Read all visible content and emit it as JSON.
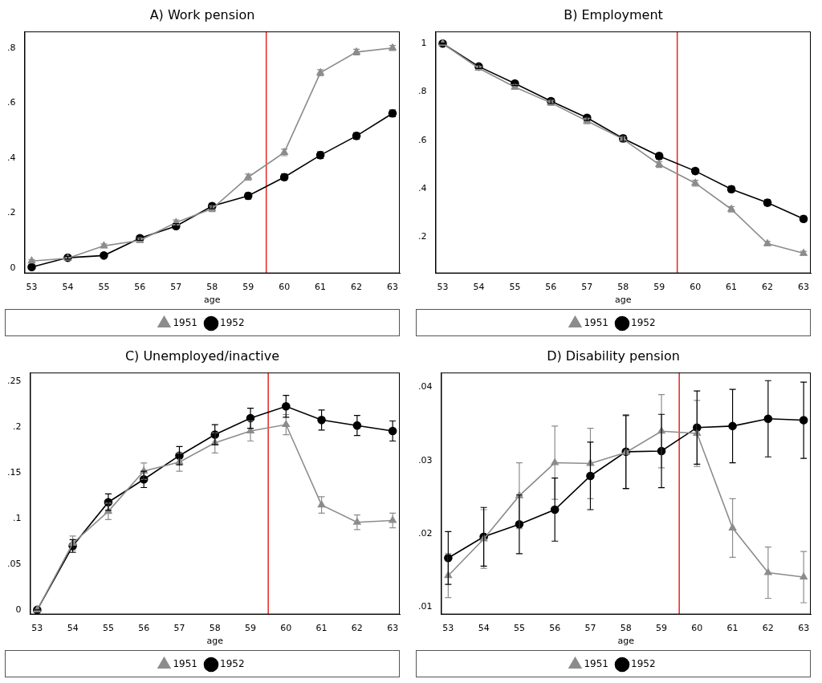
{
  "chart_data": [
    {
      "type": "line",
      "title": "A) Work pension",
      "x_label": "age",
      "x": [
        53,
        54,
        55,
        56,
        57,
        58,
        59,
        60,
        61,
        62,
        63
      ],
      "xlim": [
        52.8,
        63.2
      ],
      "xticks": [
        53,
        54,
        55,
        56,
        57,
        58,
        59,
        60,
        61,
        62,
        63
      ],
      "ylim": [
        -0.02,
        0.86
      ],
      "yticks": [
        0,
        {
          "value": 0.2,
          "label": ".2"
        },
        {
          "value": 0.4,
          "label": ".4"
        },
        {
          "value": 0.6,
          "label": ".6"
        },
        {
          "value": 0.8,
          "label": ".8"
        }
      ],
      "grid": false,
      "legend": "bottom",
      "reference_lines": [
        {
          "x": 59.5,
          "color": "#e8251f"
        }
      ],
      "series": [
        {
          "name": "1951",
          "color": "#8c8c8c",
          "marker": "triangle",
          "values": [
            0.025,
            0.035,
            0.08,
            0.1,
            0.165,
            0.215,
            0.33,
            0.42,
            0.71,
            0.785,
            0.8
          ],
          "errors": [
            0.005,
            0.005,
            0.007,
            0.008,
            0.009,
            0.01,
            0.011,
            0.012,
            0.011,
            0.01,
            0.009
          ]
        },
        {
          "name": "1952",
          "color": "#000000",
          "marker": "circle",
          "values": [
            0.003,
            0.037,
            0.045,
            0.108,
            0.152,
            0.225,
            0.262,
            0.33,
            0.41,
            0.48,
            0.562
          ],
          "errors": [
            0.003,
            0.005,
            0.006,
            0.008,
            0.009,
            0.01,
            0.011,
            0.011,
            0.012,
            0.012,
            0.012
          ]
        }
      ]
    },
    {
      "type": "line",
      "title": "B) Employment",
      "x_label": "age",
      "x": [
        53,
        54,
        55,
        56,
        57,
        58,
        59,
        60,
        61,
        62,
        63
      ],
      "xlim": [
        52.8,
        63.2
      ],
      "xticks": [
        53,
        54,
        55,
        56,
        57,
        58,
        59,
        60,
        61,
        62,
        63
      ],
      "ylim": [
        0.05,
        1.05
      ],
      "yticks": [
        {
          "value": 0.2,
          "label": ".2"
        },
        {
          "value": 0.4,
          "label": ".4"
        },
        {
          "value": 0.6,
          "label": ".6"
        },
        {
          "value": 0.8,
          "label": ".8"
        },
        1
      ],
      "grid": false,
      "legend": "bottom",
      "reference_lines": [
        {
          "x": 59.5,
          "color": "#e8251f"
        }
      ],
      "series": [
        {
          "name": "1951",
          "color": "#8c8c8c",
          "marker": "triangle",
          "values": [
            1,
            0.898,
            0.82,
            0.755,
            0.68,
            0.605,
            0.5,
            0.423,
            0.315,
            0.173,
            0.133
          ],
          "errors": [
            0.002,
            0.008,
            0.009,
            0.01,
            0.011,
            0.011,
            0.012,
            0.012,
            0.011,
            0.009,
            0.008
          ]
        },
        {
          "name": "1952",
          "color": "#000000",
          "marker": "circle",
          "values": [
            1,
            0.905,
            0.835,
            0.762,
            0.693,
            0.608,
            0.535,
            0.473,
            0.398,
            0.342,
            0.275
          ],
          "errors": [
            0.002,
            0.008,
            0.009,
            0.01,
            0.011,
            0.012,
            0.012,
            0.012,
            0.012,
            0.012,
            0.011
          ]
        }
      ]
    },
    {
      "type": "line",
      "title": "C) Unemployed/inactive",
      "x_label": "age",
      "x": [
        53,
        54,
        55,
        56,
        57,
        58,
        59,
        60,
        61,
        62,
        63
      ],
      "xlim": [
        52.8,
        63.2
      ],
      "xticks": [
        53,
        54,
        55,
        56,
        57,
        58,
        59,
        60,
        61,
        62,
        63
      ],
      "ylim": [
        -0.005,
        0.26
      ],
      "yticks": [
        0,
        {
          "value": 0.05,
          "label": ".05"
        },
        {
          "value": 0.1,
          "label": ".1"
        },
        {
          "value": 0.15,
          "label": ".15"
        },
        {
          "value": 0.2,
          "label": ".2"
        },
        {
          "value": 0.25,
          "label": ".25"
        }
      ],
      "grid": false,
      "legend": "bottom",
      "reference_lines": [
        {
          "x": 59.5,
          "color": "#e8251f"
        }
      ],
      "series": [
        {
          "name": "1951",
          "color": "#8c8c8c",
          "marker": "triangle",
          "values": [
            0,
            0.073,
            0.108,
            0.152,
            0.162,
            0.183,
            0.196,
            0.203,
            0.115,
            0.096,
            0.098
          ],
          "errors": [
            0,
            0.008,
            0.009,
            0.009,
            0.01,
            0.011,
            0.011,
            0.011,
            0.009,
            0.008,
            0.008
          ]
        },
        {
          "name": "1952",
          "color": "#000000",
          "marker": "circle",
          "values": [
            0,
            0.07,
            0.118,
            0.143,
            0.169,
            0.192,
            0.21,
            0.223,
            0.208,
            0.202,
            0.196
          ],
          "errors": [
            0,
            0.007,
            0.009,
            0.009,
            0.01,
            0.011,
            0.011,
            0.012,
            0.011,
            0.011,
            0.011
          ]
        }
      ]
    },
    {
      "type": "line",
      "title": "D) Disability pension",
      "x_label": "age",
      "x": [
        53,
        54,
        55,
        56,
        57,
        58,
        59,
        60,
        61,
        62,
        63
      ],
      "xlim": [
        52.8,
        63.2
      ],
      "xticks": [
        53,
        54,
        55,
        56,
        57,
        58,
        59,
        60,
        61,
        62,
        63
      ],
      "ylim": [
        0.009,
        0.042
      ],
      "yticks": [
        {
          "value": 0.01,
          "label": ".01"
        },
        {
          "value": 0.02,
          "label": ".02"
        },
        {
          "value": 0.03,
          "label": ".03"
        },
        {
          "value": 0.04,
          "label": ".04"
        }
      ],
      "grid": false,
      "legend": "bottom",
      "reference_lines": [
        {
          "x": 59.5,
          "color": "#e8251f"
        }
      ],
      "series": [
        {
          "name": "1951",
          "color": "#8c8c8c",
          "marker": "triangle",
          "values": [
            0.0143,
            0.0193,
            0.0252,
            0.0297,
            0.0296,
            0.0311,
            0.034,
            0.0337,
            0.0208,
            0.0147,
            0.0141
          ],
          "errors": [
            0.003,
            0.004,
            0.0045,
            0.005,
            0.0048,
            0.005,
            0.005,
            0.0045,
            0.004,
            0.0035,
            0.0035
          ]
        },
        {
          "name": "1952",
          "color": "#000000",
          "marker": "circle",
          "values": [
            0.0167,
            0.0196,
            0.0213,
            0.0233,
            0.0279,
            0.0312,
            0.0313,
            0.0345,
            0.0347,
            0.0357,
            0.0355
          ],
          "errors": [
            0.0036,
            0.004,
            0.004,
            0.0043,
            0.0046,
            0.005,
            0.005,
            0.005,
            0.005,
            0.0052,
            0.0052
          ]
        }
      ]
    }
  ]
}
